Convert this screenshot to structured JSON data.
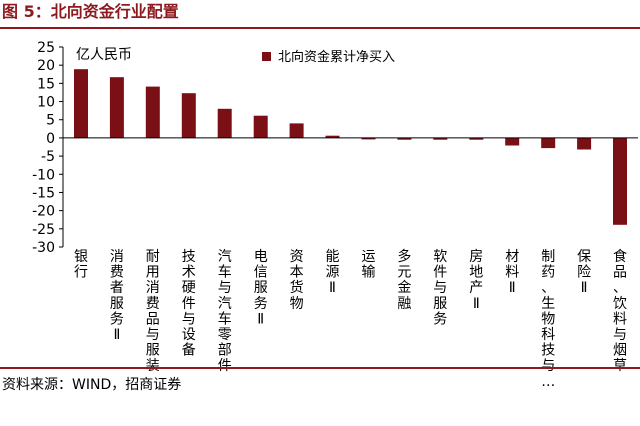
{
  "figure": {
    "title": "图 5：北向资金行业配置",
    "source": "资料来源：WIND，招商证券"
  },
  "colors": {
    "accent": "#8c1a1f",
    "bar": "#7a0f15"
  },
  "chart_data": {
    "type": "bar",
    "unit_label": "亿人民币",
    "legend": {
      "entries": [
        "北向资金累计净买入"
      ],
      "position": "top-right"
    },
    "ylim": [
      -30,
      25
    ],
    "yticks": [
      25,
      20,
      15,
      10,
      5,
      0,
      -5,
      -10,
      -15,
      -20,
      -25,
      -30
    ],
    "grid": false,
    "categories": [
      "银行",
      "消费者服务Ⅱ",
      "耐用消费品与服装",
      "技术硬件与设备",
      "汽车与汽车零部件",
      "电信服务Ⅱ",
      "资本货物",
      "能源Ⅱ",
      "运输",
      "多元金融",
      "软件与服务",
      "房地产Ⅱ",
      "材料Ⅱ",
      "制药、生物科技与…",
      "保险Ⅱ",
      "食品、饮料与烟草"
    ],
    "series": [
      {
        "name": "北向资金累计净买入",
        "values": [
          18.9,
          16.7,
          14.1,
          12.3,
          8.0,
          6.1,
          4.0,
          0.6,
          -0.4,
          -0.5,
          -0.5,
          -0.5,
          -2.1,
          -2.8,
          -3.2,
          -23.9
        ]
      }
    ]
  }
}
